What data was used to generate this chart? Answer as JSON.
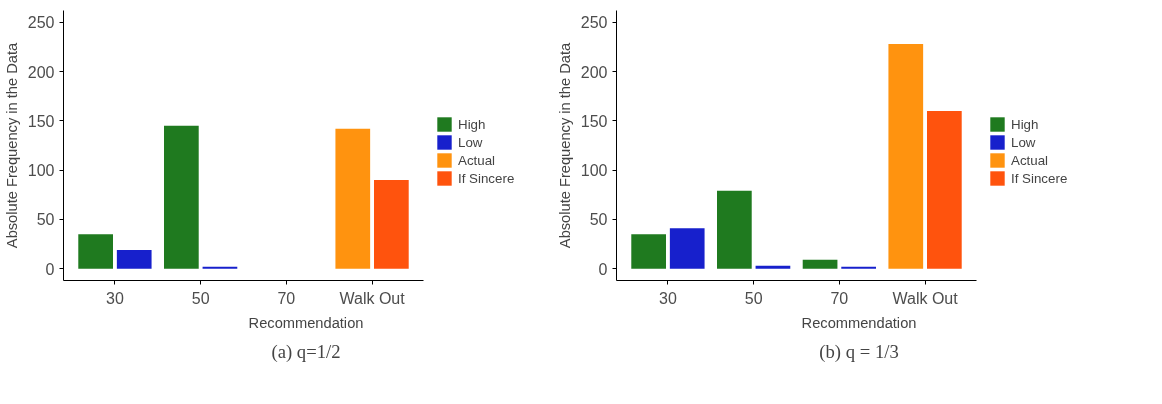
{
  "chart_data": [
    {
      "type": "bar",
      "title": "(a) q=1/2",
      "xlabel": "Recommendation",
      "ylabel": "Absolute Frequency in the Data",
      "categories": [
        "30",
        "50",
        "70",
        "Walk Out"
      ],
      "ylim": [
        -12,
        262
      ],
      "yticks": [
        0,
        50,
        100,
        150,
        200,
        250
      ],
      "grid": false,
      "legend": "right",
      "series": [
        {
          "name": "High",
          "color": "#1f7a1f",
          "values": [
            35,
            145,
            null,
            null
          ]
        },
        {
          "name": "Low",
          "color": "#1720cc",
          "values": [
            19,
            2,
            null,
            null
          ]
        },
        {
          "name": "Actual",
          "color": "#ff930f",
          "values": [
            null,
            null,
            null,
            142
          ]
        },
        {
          "name": "If Sincere",
          "color": "#ff530d",
          "values": [
            null,
            null,
            null,
            90
          ]
        }
      ]
    },
    {
      "type": "bar",
      "title": "(b) q = 1/3",
      "xlabel": "Recommendation",
      "ylabel": "Absolute Frequency in the Data",
      "categories": [
        "30",
        "50",
        "70",
        "Walk Out"
      ],
      "ylim": [
        -12,
        262
      ],
      "yticks": [
        0,
        50,
        100,
        150,
        200,
        250
      ],
      "grid": false,
      "legend": "right",
      "series": [
        {
          "name": "High",
          "color": "#1f7a1f",
          "values": [
            35,
            79,
            9,
            null
          ]
        },
        {
          "name": "Low",
          "color": "#1720cc",
          "values": [
            41,
            3,
            2,
            null
          ]
        },
        {
          "name": "Actual",
          "color": "#ff930f",
          "values": [
            null,
            null,
            null,
            228
          ]
        },
        {
          "name": "If Sincere",
          "color": "#ff530d",
          "values": [
            null,
            null,
            null,
            160
          ]
        }
      ]
    }
  ]
}
